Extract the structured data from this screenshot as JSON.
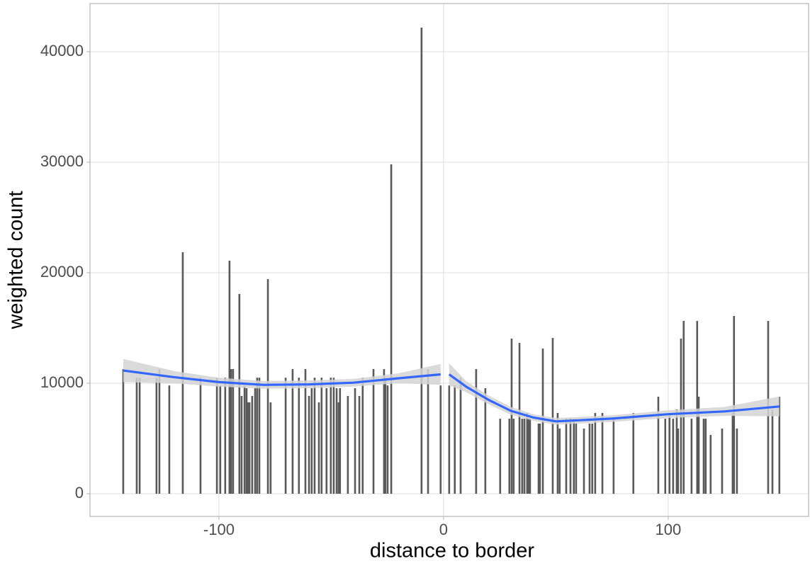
{
  "chart_data": {
    "type": "bar",
    "x_label": "distance to border",
    "y_label": "weighted count",
    "xlim": [
      -157.4,
      162.5
    ],
    "ylim": [
      -2051,
      44359
    ],
    "xticks": [
      -100,
      0,
      100
    ],
    "yticks": [
      0,
      10000,
      20000,
      30000,
      40000
    ],
    "grid": true,
    "color": "#595959",
    "x": [
      -142.6,
      -136.6,
      -135.3,
      -127.8,
      -126.5,
      -122.1,
      -116.1,
      -108.2,
      -100.9,
      -99.4,
      -97.2,
      -95.3,
      -94.6,
      -93.7,
      -90.9,
      -89.9,
      -88.6,
      -87.7,
      -87.1,
      -86.4,
      -85.2,
      -83.9,
      -83.0,
      -82.0,
      -78.2,
      -77.0,
      -70.3,
      -67.2,
      -64.4,
      -61.5,
      -59.9,
      -58.7,
      -57.4,
      -55.5,
      -54.3,
      -52.1,
      -50.2,
      -48.9,
      -47.6,
      -46.7,
      -46.1,
      -42.6,
      -39.4,
      -37.5,
      -36.0,
      -31.2,
      -26.5,
      -25.9,
      -24.9,
      -23.3,
      -9.8,
      -6.9,
      -1.3,
      2.5,
      5.0,
      7.6,
      14.5,
      18.6,
      25.2,
      29.3,
      30.3,
      31.2,
      33.8,
      35.0,
      36.0,
      37.2,
      37.9,
      38.5,
      42.3,
      42.9,
      44.2,
      48.6,
      50.8,
      51.7,
      54.6,
      56.5,
      58.0,
      59.0,
      62.5,
      65.0,
      66.2,
      67.5,
      70.7,
      75.7,
      84.5,
      95.6,
      98.7,
      100.6,
      102.2,
      103.8,
      104.4,
      105.7,
      106.9,
      110.4,
      112.9,
      113.6,
      115.8,
      116.7,
      118.9,
      124.0,
      128.7,
      129.3,
      130.6,
      144.5,
      146.4,
      149.5
    ],
    "values": [
      11280,
      10500,
      10500,
      10500,
      11280,
      9800,
      21860,
      10500,
      10500,
      9800,
      10500,
      21090,
      11280,
      11280,
      18080,
      8850,
      9800,
      9550,
      8270,
      8270,
      8850,
      9550,
      10500,
      10500,
      19420,
      8270,
      10500,
      11280,
      10500,
      11280,
      8850,
      9550,
      10500,
      8270,
      10500,
      9550,
      10500,
      10500,
      9550,
      8270,
      9550,
      8850,
      9550,
      8850,
      10500,
      11280,
      11280,
      10500,
      9800,
      29810,
      42180,
      11280,
      9800,
      9800,
      9800,
      10500,
      11280,
      9550,
      6790,
      6790,
      14040,
      6790,
      13650,
      6790,
      6790,
      7310,
      6790,
      6790,
      6350,
      6350,
      13140,
      14100,
      7310,
      5900,
      6790,
      6790,
      6790,
      6350,
      5900,
      6350,
      6350,
      7310,
      7310,
      6790,
      7310,
      8780,
      6790,
      7310,
      6790,
      7630,
      5900,
      14040,
      15640,
      6790,
      15640,
      8780,
      6790,
      6790,
      5320,
      5900,
      7310,
      16090,
      5900,
      15640,
      7630,
      8780
    ],
    "smooth": [
      {
        "color": "#3366ff",
        "band_color": "#d3d3d3",
        "x": [
          -142.6,
          -120,
          -100,
          -80,
          -60,
          -40,
          -20,
          -1.3
        ],
        "values": [
          11150,
          10550,
          10100,
          9850,
          9900,
          10050,
          10450,
          10800
        ],
        "lower": [
          10100,
          10000,
          9700,
          9500,
          9550,
          9700,
          10000,
          9850
        ],
        "upper": [
          12200,
          11100,
          10500,
          10200,
          10250,
          10400,
          10900,
          11750
        ]
      },
      {
        "color": "#3366ff",
        "band_color": "#d3d3d3",
        "x": [
          2.5,
          10,
          20,
          30,
          40,
          50,
          60,
          75,
          100,
          125,
          149.5
        ],
        "values": [
          10800,
          9700,
          8500,
          7500,
          6900,
          6550,
          6650,
          6800,
          7200,
          7450,
          7900
        ],
        "lower": [
          9800,
          9200,
          8100,
          7150,
          6600,
          6250,
          6350,
          6500,
          6850,
          7050,
          7000
        ],
        "upper": [
          11800,
          10200,
          8900,
          7850,
          7200,
          6850,
          6950,
          7100,
          7550,
          7850,
          8800
        ]
      }
    ]
  }
}
